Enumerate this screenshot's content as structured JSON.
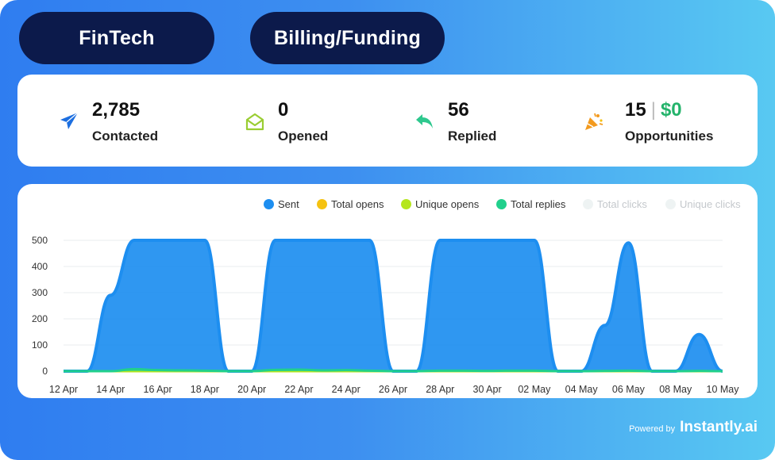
{
  "tags": {
    "campaign": "FinTech",
    "segment": "Billing/Funding"
  },
  "stats": [
    {
      "icon": "paper-plane-icon",
      "value": "2,785",
      "label": "Contacted",
      "color": "#1d6fe0"
    },
    {
      "icon": "open-envelope-icon",
      "value": "0",
      "label": "Opened",
      "color": "#9acd32"
    },
    {
      "icon": "reply-arrow-icon",
      "value": "56",
      "label": "Replied",
      "color": "#2ec88e"
    },
    {
      "icon": "party-popper-icon",
      "value": "15",
      "value2": "$0",
      "label": "Opportunities",
      "color": "#f39a1e"
    }
  ],
  "legend": [
    {
      "name": "Sent",
      "color": "#1d8ef0",
      "active": true
    },
    {
      "name": "Total opens",
      "color": "#f5c211",
      "active": true
    },
    {
      "name": "Unique opens",
      "color": "#b5e61d",
      "active": true
    },
    {
      "name": "Total replies",
      "color": "#21d08c",
      "active": true
    },
    {
      "name": "Total clicks",
      "color": "#eef3f3",
      "active": false
    },
    {
      "name": "Unique clicks",
      "color": "#eef3f3",
      "active": false
    }
  ],
  "chart_data": {
    "type": "area",
    "title": "",
    "xlabel": "",
    "ylabel": "",
    "ylim": [
      0,
      500
    ],
    "yticks": [
      0,
      100,
      200,
      300,
      400,
      500
    ],
    "xticks": [
      "12 Apr",
      "14 Apr",
      "16 Apr",
      "18 Apr",
      "20 Apr",
      "22 Apr",
      "24 Apr",
      "26 Apr",
      "28 Apr",
      "30 Apr",
      "02 May",
      "04 May",
      "06 May",
      "08 May",
      "10 May"
    ],
    "x": [
      "12 Apr",
      "13 Apr",
      "14 Apr",
      "15 Apr",
      "16 Apr",
      "17 Apr",
      "18 Apr",
      "19 Apr",
      "20 Apr",
      "21 Apr",
      "22 Apr",
      "23 Apr",
      "24 Apr",
      "25 Apr",
      "26 Apr",
      "27 Apr",
      "28 Apr",
      "29 Apr",
      "30 Apr",
      "01 May",
      "02 May",
      "03 May",
      "04 May",
      "05 May",
      "06 May",
      "07 May",
      "08 May",
      "09 May",
      "10 May"
    ],
    "grid": true,
    "legend": "top-right",
    "series": [
      {
        "name": "Sent",
        "values": [
          0,
          0,
          290,
          500,
          500,
          500,
          500,
          0,
          0,
          500,
          500,
          500,
          500,
          500,
          0,
          0,
          500,
          500,
          500,
          500,
          500,
          0,
          0,
          175,
          490,
          0,
          0,
          140,
          0
        ]
      },
      {
        "name": "Total opens",
        "values": [
          0,
          0,
          0,
          0,
          0,
          0,
          0,
          0,
          0,
          0,
          0,
          0,
          0,
          0,
          0,
          0,
          0,
          0,
          0,
          0,
          0,
          0,
          0,
          0,
          0,
          0,
          0,
          0,
          0
        ]
      },
      {
        "name": "Unique opens",
        "values": [
          0,
          0,
          0,
          0,
          0,
          0,
          0,
          0,
          0,
          0,
          0,
          0,
          0,
          0,
          0,
          0,
          0,
          0,
          0,
          0,
          0,
          0,
          0,
          0,
          0,
          0,
          0,
          0,
          0
        ]
      },
      {
        "name": "Total replies",
        "values": [
          0,
          0,
          0,
          8,
          4,
          3,
          2,
          0,
          0,
          5,
          6,
          3,
          4,
          2,
          0,
          0,
          2,
          2,
          1,
          2,
          2,
          0,
          0,
          1,
          2,
          0,
          0,
          1,
          0
        ]
      }
    ]
  },
  "footer": {
    "powered_by": "Powered by",
    "brand": "Instantly.ai"
  }
}
